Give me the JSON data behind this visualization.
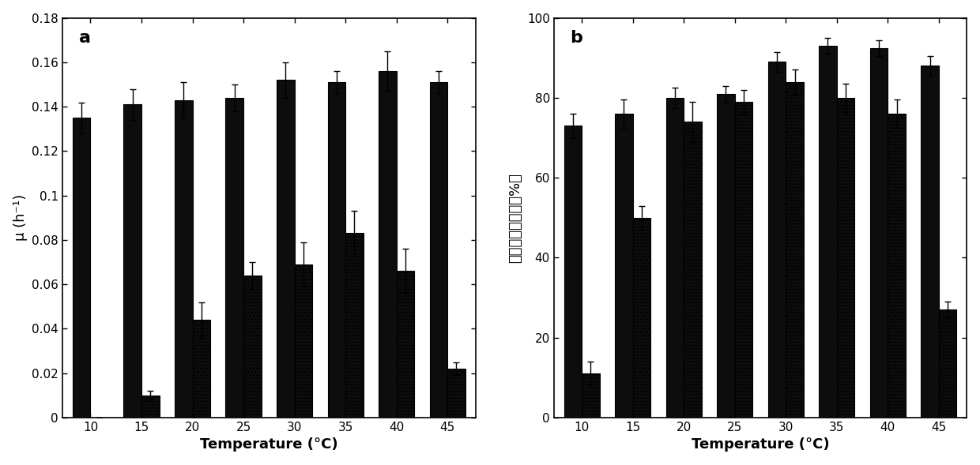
{
  "temperatures": [
    10,
    15,
    20,
    25,
    30,
    35,
    40,
    45
  ],
  "panel_a": {
    "bar1_values": [
      0.135,
      0.141,
      0.143,
      0.144,
      0.152,
      0.151,
      0.156,
      0.151
    ],
    "bar1_errors": [
      0.007,
      0.007,
      0.008,
      0.006,
      0.008,
      0.005,
      0.009,
      0.005
    ],
    "bar2_values": [
      0.0,
      0.01,
      0.044,
      0.064,
      0.069,
      0.083,
      0.066,
      0.022
    ],
    "bar2_errors": [
      0.0,
      0.002,
      0.008,
      0.006,
      0.01,
      0.01,
      0.01,
      0.003
    ],
    "ylabel": "μ (h⁻¹)",
    "xlabel": "Temperature (°C)",
    "ylim": [
      0,
      0.18
    ],
    "yticks": [
      0,
      0.02,
      0.04,
      0.06,
      0.08,
      0.1,
      0.12,
      0.14,
      0.16,
      0.18
    ],
    "label": "a"
  },
  "panel_b": {
    "bar1_values": [
      73.0,
      76.0,
      80.0,
      81.0,
      89.0,
      93.0,
      92.5,
      88.0
    ],
    "bar1_errors": [
      3.0,
      3.5,
      2.5,
      2.0,
      2.5,
      2.0,
      2.0,
      2.5
    ],
    "bar2_values": [
      11.0,
      50.0,
      74.0,
      79.0,
      84.0,
      80.0,
      76.0,
      27.0
    ],
    "bar2_errors": [
      3.0,
      3.0,
      5.0,
      3.0,
      3.0,
      3.5,
      3.5,
      2.0
    ],
    "ylabel": "硬酸盐去除效率（%）",
    "xlabel": "Temperature (°C)",
    "ylim": [
      0,
      100
    ],
    "yticks": [
      0,
      20,
      40,
      60,
      80,
      100
    ],
    "label": "b"
  },
  "bar_width": 0.35,
  "bar1_color": "#0d0d0d",
  "bar2_color": "#0d0d0d",
  "bar2_hatch": "....",
  "background_color": "#ffffff",
  "label_fontsize": 16,
  "tick_fontsize": 11,
  "axis_label_fontsize": 13,
  "xlabel_fontsize": 13
}
